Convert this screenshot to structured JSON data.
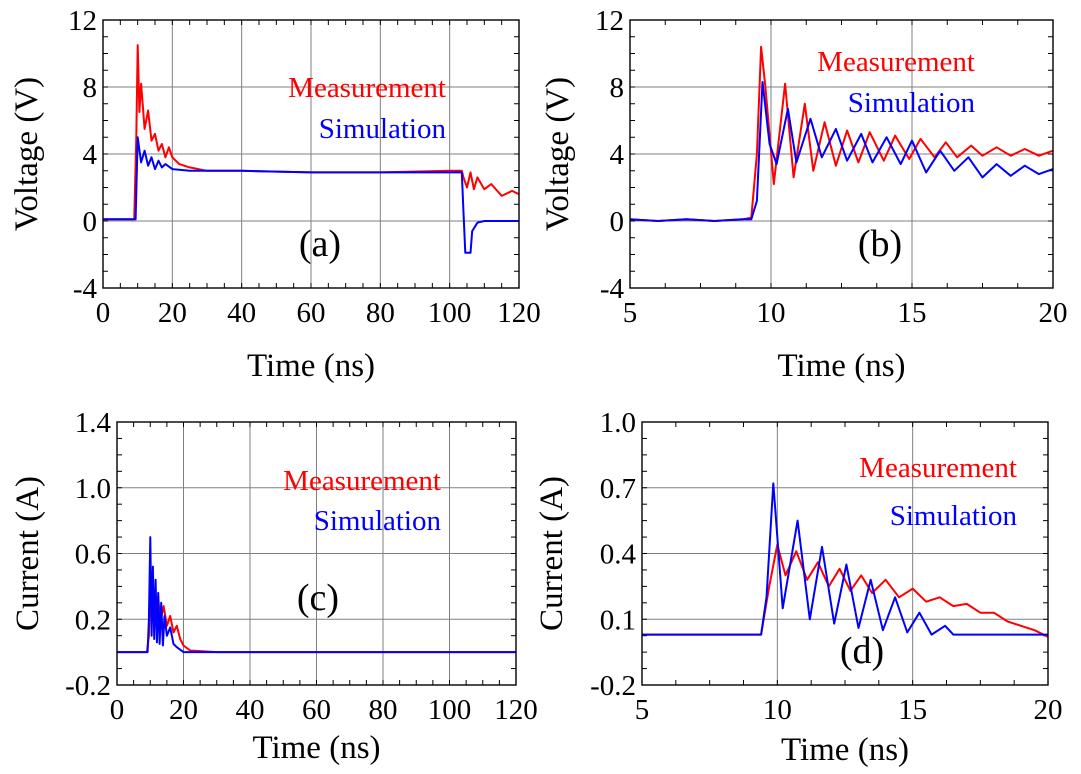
{
  "chart_data": [
    {
      "type": "line",
      "panel": "(a)",
      "xlabel": "Time (ns)",
      "ylabel": "Voltage (V)",
      "xlim": [
        0,
        120
      ],
      "ylim": [
        -4,
        12
      ],
      "xticks": [
        "0",
        "20",
        "40",
        "60",
        "80",
        "100",
        "120"
      ],
      "yticks": [
        "-4",
        "0",
        "4",
        "8",
        "12"
      ],
      "grid": true,
      "legend_position": "top-right",
      "series": [
        {
          "name": "Measurement",
          "color": "#ff0000",
          "x": [
            0,
            9,
            9.6,
            10,
            10.5,
            11,
            12,
            13,
            14,
            15,
            16,
            17,
            18,
            19,
            20,
            22,
            25,
            30,
            40,
            60,
            80,
            100,
            103.5,
            104,
            105,
            106,
            107,
            108,
            110,
            112,
            115,
            118,
            120
          ],
          "y": [
            0.1,
            0.1,
            5,
            10.5,
            6.5,
            8.2,
            5.5,
            6.6,
            4.8,
            5.2,
            4.2,
            4.6,
            3.8,
            4.4,
            3.8,
            3.4,
            3.2,
            3.0,
            3.0,
            2.9,
            2.9,
            3.0,
            3.0,
            2.6,
            2.0,
            2.9,
            1.9,
            2.6,
            1.9,
            2.2,
            1.5,
            1.8,
            1.6
          ]
        },
        {
          "name": "Simulation",
          "color": "#0000ff",
          "x": [
            0,
            9.4,
            10,
            11,
            12,
            13,
            14,
            15,
            16,
            17,
            18,
            20,
            25,
            40,
            60,
            80,
            100,
            103.5,
            104,
            104.5,
            106,
            106.5,
            108,
            110,
            115,
            120
          ],
          "y": [
            0.1,
            0.1,
            5,
            3.5,
            4.2,
            3.3,
            3.8,
            3.1,
            3.6,
            3.2,
            3.4,
            3.1,
            3.0,
            3.0,
            2.9,
            2.9,
            2.9,
            2.9,
            0.5,
            -1.9,
            -1.9,
            -0.6,
            -0.1,
            0,
            0,
            0
          ]
        }
      ]
    },
    {
      "type": "line",
      "panel": "(b)",
      "xlabel": "Time (ns)",
      "ylabel": "Voltage (V)",
      "xlim": [
        5,
        20
      ],
      "ylim": [
        -4,
        12
      ],
      "xticks": [
        "5",
        "10",
        "15",
        "20"
      ],
      "yticks": [
        "-4",
        "0",
        "4",
        "8",
        "12"
      ],
      "grid": true,
      "legend_position": "top-right",
      "series": [
        {
          "name": "Measurement",
          "color": "#ff0000",
          "x": [
            5,
            6,
            7,
            8,
            9,
            9.3,
            9.5,
            9.65,
            9.8,
            10.1,
            10.5,
            10.8,
            11.2,
            11.5,
            11.9,
            12.3,
            12.7,
            13.1,
            13.5,
            14.0,
            14.4,
            14.9,
            15.3,
            15.8,
            16.2,
            16.6,
            17.1,
            17.5,
            18.0,
            18.5,
            19.0,
            19.5,
            20
          ],
          "y": [
            0.1,
            0.0,
            0.1,
            0.0,
            0.1,
            0.2,
            4,
            10.4,
            8,
            2.2,
            8.2,
            2.6,
            7.0,
            3.0,
            5.9,
            3.3,
            5.4,
            3.5,
            5.3,
            3.6,
            5.1,
            3.7,
            4.9,
            3.8,
            4.7,
            3.8,
            4.5,
            3.9,
            4.4,
            3.9,
            4.3,
            3.9,
            4.2
          ]
        },
        {
          "name": "Simulation",
          "color": "#0000ff",
          "x": [
            5,
            6,
            7,
            8,
            9,
            9.3,
            9.5,
            9.7,
            9.95,
            10.2,
            10.6,
            10.9,
            11.4,
            11.8,
            12.3,
            12.7,
            13.2,
            13.6,
            14.1,
            14.6,
            15.0,
            15.5,
            16.0,
            16.5,
            17.0,
            17.5,
            18.0,
            18.5,
            19.0,
            19.5,
            20
          ],
          "y": [
            0.1,
            0.0,
            0.1,
            0.0,
            0.1,
            0.1,
            1.2,
            8.3,
            4.6,
            3.4,
            6.7,
            3.5,
            6.1,
            3.8,
            5.5,
            3.6,
            5.2,
            3.5,
            5.0,
            3.4,
            4.8,
            2.9,
            4.2,
            3.0,
            3.8,
            2.6,
            3.4,
            2.7,
            3.3,
            2.8,
            3.1
          ]
        }
      ]
    },
    {
      "type": "line",
      "panel": "(c)",
      "xlabel": "Time (ns)",
      "ylabel": "Current (A)",
      "xlim": [
        0,
        120
      ],
      "ylim": [
        -0.2,
        1.4
      ],
      "xticks": [
        "0",
        "20",
        "40",
        "60",
        "80",
        "100",
        "120"
      ],
      "yticks": [
        "-0.2",
        "0.2",
        "0.6",
        "1.0",
        "1.4"
      ],
      "grid": true,
      "legend_position": "right",
      "series": [
        {
          "name": "Measurement",
          "color": "#ff0000",
          "x": [
            0,
            9,
            9.6,
            10,
            10.6,
            11.2,
            11.8,
            12.4,
            13,
            14,
            15,
            16,
            17,
            18,
            19,
            20,
            22,
            30,
            60,
            90,
            120
          ],
          "y": [
            0,
            0,
            0.1,
            0.4,
            0.2,
            0.38,
            0.2,
            0.34,
            0.18,
            0.28,
            0.16,
            0.22,
            0.12,
            0.16,
            0.08,
            0.04,
            0.01,
            0.0,
            0.0,
            0.0,
            0.0
          ]
        },
        {
          "name": "Simulation",
          "color": "#0000ff",
          "x": [
            0,
            9.2,
            9.6,
            10.0,
            10.4,
            10.8,
            11.2,
            11.6,
            12.0,
            12.4,
            12.8,
            13.3,
            13.8,
            14.3,
            15,
            16,
            17,
            18,
            20,
            30,
            60,
            90,
            120
          ],
          "y": [
            0,
            0,
            0.2,
            0.7,
            0.1,
            0.52,
            0.08,
            0.44,
            0.06,
            0.36,
            0.05,
            0.3,
            0.04,
            0.22,
            0.1,
            0.15,
            0.05,
            0.03,
            0.0,
            0.0,
            0.0,
            0.0,
            0.0
          ]
        }
      ]
    },
    {
      "type": "line",
      "panel": "(d)",
      "xlabel": "Time (ns)",
      "ylabel": "Current (A)",
      "xlim": [
        5,
        20
      ],
      "ylim": [
        -0.2,
        1.0
      ],
      "xticks": [
        "5",
        "10",
        "15",
        "20"
      ],
      "yticks": [
        "-0.2",
        "0.1",
        "0.4",
        "0.7",
        "1.0"
      ],
      "grid": true,
      "legend_position": "top-right",
      "series": [
        {
          "name": "Measurement",
          "color": "#ff0000",
          "x": [
            5,
            6,
            7,
            8,
            9,
            9.4,
            9.7,
            10.0,
            10.3,
            10.7,
            11.1,
            11.5,
            11.9,
            12.3,
            12.7,
            13.1,
            13.5,
            14.0,
            14.5,
            15.0,
            15.5,
            16.0,
            16.5,
            17.0,
            17.5,
            18.0,
            18.5,
            19.0,
            19.5,
            20
          ],
          "y": [
            0.03,
            0.03,
            0.03,
            0.03,
            0.03,
            0.03,
            0.25,
            0.44,
            0.3,
            0.41,
            0.28,
            0.36,
            0.25,
            0.33,
            0.23,
            0.3,
            0.22,
            0.28,
            0.2,
            0.24,
            0.18,
            0.2,
            0.16,
            0.17,
            0.13,
            0.13,
            0.09,
            0.07,
            0.05,
            0.02
          ]
        },
        {
          "name": "Simulation",
          "color": "#0000ff",
          "x": [
            5,
            6,
            7,
            8,
            9,
            9.4,
            9.6,
            9.85,
            10.2,
            10.75,
            11.2,
            11.65,
            12.1,
            12.55,
            13.0,
            13.45,
            13.9,
            14.35,
            14.8,
            15.25,
            15.7,
            16.2,
            16.5,
            17,
            18,
            19,
            20
          ],
          "y": [
            0.03,
            0.03,
            0.03,
            0.03,
            0.03,
            0.03,
            0.2,
            0.72,
            0.15,
            0.55,
            0.1,
            0.43,
            0.08,
            0.35,
            0.06,
            0.28,
            0.05,
            0.2,
            0.04,
            0.13,
            0.03,
            0.07,
            0.03,
            0.03,
            0.03,
            0.03,
            0.03
          ]
        }
      ]
    }
  ]
}
